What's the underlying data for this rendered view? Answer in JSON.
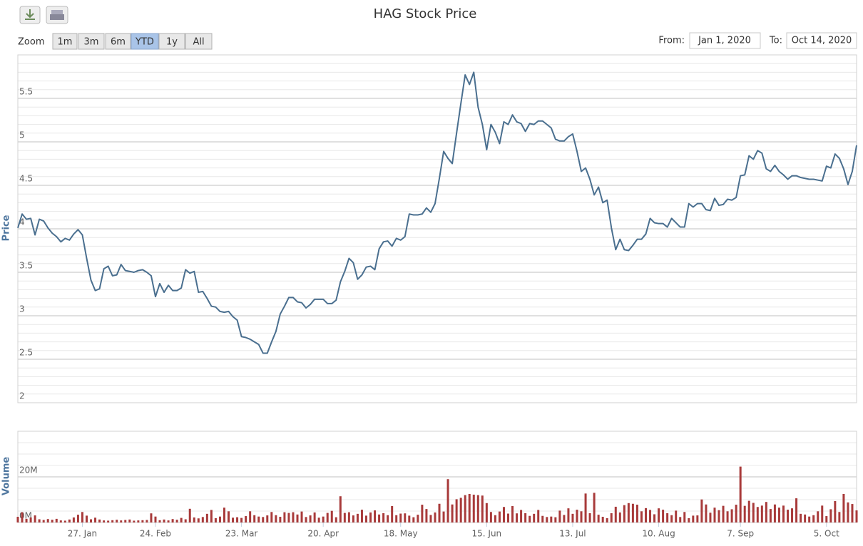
{
  "range_selector": {
    "label": "Zoom",
    "buttons": [
      "1m",
      "3m",
      "6m",
      "YTD",
      "1y",
      "All"
    ],
    "selected": 3,
    "from_label": "From:",
    "from": "Jan 1, 2020",
    "to_label": "To:",
    "to": "Oct 14, 2020"
  },
  "chart_data": {
    "type": "stock",
    "title": "HAG Stock Price",
    "categories": [
      null,
      null,
      null,
      null,
      null,
      null,
      null,
      null,
      null,
      null,
      null,
      null,
      null,
      null,
      null,
      "27. Jan",
      null,
      null,
      null,
      null,
      null,
      null,
      null,
      null,
      null,
      null,
      null,
      null,
      null,
      null,
      null,
      null,
      "24. Feb",
      null,
      null,
      null,
      null,
      null,
      null,
      null,
      null,
      null,
      null,
      null,
      null,
      null,
      null,
      null,
      null,
      null,
      null,
      null,
      "23. Mar",
      null,
      null,
      null,
      null,
      null,
      null,
      null,
      null,
      null,
      null,
      null,
      null,
      null,
      null,
      null,
      null,
      null,
      null,
      "20. Apr",
      null,
      null,
      null,
      null,
      null,
      null,
      null,
      null,
      null,
      null,
      null,
      null,
      null,
      null,
      null,
      null,
      null,
      "18. May",
      null,
      null,
      null,
      null,
      null,
      null,
      null,
      null,
      null,
      null,
      null,
      null,
      null,
      null,
      null,
      null,
      null,
      null,
      null,
      "15. Jun",
      null,
      null,
      null,
      null,
      null,
      null,
      null,
      null,
      null,
      null,
      null,
      null,
      null,
      null,
      null,
      null,
      null,
      null,
      null,
      "13. Jul",
      null,
      null,
      null,
      null,
      null,
      null,
      null,
      null,
      null,
      null,
      null,
      null,
      null,
      null,
      null,
      null,
      null,
      null,
      null,
      "10. Aug",
      null,
      null,
      null,
      null,
      null,
      null,
      null,
      null,
      null,
      null,
      null,
      null,
      null,
      null,
      null,
      null,
      null,
      null,
      "7. Sep",
      null,
      null,
      null,
      null,
      null,
      null,
      null,
      null,
      null,
      null,
      null,
      null,
      null,
      null,
      null,
      null,
      null,
      null,
      null,
      "5. Oct",
      null,
      null,
      null,
      null,
      null,
      null,
      null
    ],
    "panels": [
      {
        "type": "line",
        "ylabel": "Price",
        "color": "#4a6f8f",
        "ylim": [
          2,
          6
        ],
        "yticks": [
          2,
          2.5,
          3,
          3.5,
          4,
          4.5,
          5,
          5.5
        ],
        "minor_step": 0.1,
        "values": [
          4.01,
          4.17,
          4.11,
          4.12,
          3.93,
          4.11,
          4.09,
          4.01,
          3.95,
          3.91,
          3.85,
          3.89,
          3.87,
          3.94,
          3.99,
          3.93,
          3.66,
          3.41,
          3.29,
          3.31,
          3.54,
          3.57,
          3.46,
          3.47,
          3.59,
          3.52,
          3.51,
          3.5,
          3.52,
          3.53,
          3.5,
          3.46,
          3.22,
          3.37,
          3.27,
          3.35,
          3.29,
          3.29,
          3.32,
          3.53,
          3.49,
          3.51,
          3.27,
          3.28,
          3.2,
          3.11,
          3.1,
          3.05,
          3.04,
          3.05,
          2.99,
          2.95,
          2.76,
          2.75,
          2.73,
          2.7,
          2.67,
          2.57,
          2.57,
          2.7,
          2.82,
          3.02,
          3.11,
          3.21,
          3.21,
          3.16,
          3.15,
          3.09,
          3.13,
          3.19,
          3.19,
          3.19,
          3.14,
          3.14,
          3.18,
          3.39,
          3.51,
          3.66,
          3.61,
          3.42,
          3.47,
          3.56,
          3.57,
          3.53,
          3.77,
          3.85,
          3.86,
          3.8,
          3.89,
          3.87,
          3.91,
          4.17,
          4.16,
          4.16,
          4.17,
          4.24,
          4.19,
          4.29,
          4.58,
          4.89,
          4.81,
          4.75,
          5.1,
          5.44,
          5.77,
          5.66,
          5.8,
          5.4,
          5.2,
          4.91,
          5.2,
          5.11,
          4.98,
          5.23,
          5.2,
          5.31,
          5.23,
          5.21,
          5.12,
          5.21,
          5.2,
          5.24,
          5.24,
          5.2,
          5.16,
          5.03,
          5.01,
          5.01,
          5.06,
          5.09,
          4.89,
          4.66,
          4.7,
          4.57,
          4.39,
          4.48,
          4.3,
          4.33,
          4.01,
          3.76,
          3.88,
          3.76,
          3.75,
          3.81,
          3.88,
          3.88,
          3.94,
          4.12,
          4.07,
          4.06,
          4.06,
          4.02,
          4.12,
          4.07,
          4.02,
          4.02,
          4.29,
          4.25,
          4.29,
          4.29,
          4.22,
          4.21,
          4.35,
          4.27,
          4.28,
          4.34,
          4.33,
          4.36,
          4.61,
          4.62,
          4.84,
          4.8,
          4.9,
          4.87,
          4.69,
          4.66,
          4.73,
          4.66,
          4.62,
          4.57,
          4.61,
          4.61,
          4.59,
          4.58,
          4.57,
          4.57,
          4.56,
          4.55,
          4.72,
          4.7,
          4.86,
          4.81,
          4.69,
          4.51,
          4.66,
          4.96
        ]
      },
      {
        "type": "bar",
        "ylabel": "Volume",
        "color": "#a83a3a",
        "ylim": [
          0,
          40000000
        ],
        "yticks": [
          {
            "value": 0,
            "label": "0M"
          },
          {
            "value": 20000000,
            "label": "20M"
          }
        ],
        "minor_step": 5000000,
        "values": [
          2500000,
          4500000,
          1600000,
          2200000,
          3100000,
          1400000,
          1100000,
          1500000,
          1200000,
          1600000,
          900000,
          800000,
          1300000,
          2200000,
          3400000,
          4600000,
          3000000,
          1400000,
          2100000,
          1300000,
          900000,
          800000,
          1000000,
          1200000,
          900000,
          1100000,
          1300000,
          800000,
          900000,
          1000000,
          1100000,
          4000000,
          2600000,
          1000000,
          1300000,
          900000,
          1500000,
          1200000,
          2000000,
          1400000,
          6000000,
          2200000,
          1800000,
          2400000,
          3800000,
          5500000,
          1900000,
          2600000,
          6500000,
          4900000,
          2100000,
          2300000,
          2000000,
          2800000,
          4900000,
          3200000,
          2600000,
          2400000,
          3100000,
          4600000,
          3200000,
          2500000,
          4500000,
          4200000,
          4500000,
          3500000,
          4800000,
          2400000,
          3100000,
          4400000,
          2100000,
          2600000,
          4200000,
          5100000,
          2300000,
          11500000,
          4200000,
          4500000,
          3100000,
          3800000,
          5600000,
          3000000,
          4400000,
          5300000,
          3500000,
          4100000,
          3200000,
          7200000,
          3200000,
          3900000,
          4000000,
          3000000,
          2300000,
          3400000,
          7800000,
          5900000,
          3300000,
          4400000,
          8200000,
          4800000,
          19000000,
          7900000,
          10200000,
          10800000,
          12000000,
          12500000,
          12200000,
          12000000,
          11800000,
          8500000,
          4600000,
          3200000,
          4800000,
          6800000,
          3900000,
          7200000,
          4000000,
          5500000,
          4100000,
          2900000,
          3800000,
          5500000,
          2900000,
          2400000,
          2600000,
          2300000,
          5200000,
          3300000,
          6200000,
          3800000,
          5600000,
          4900000,
          12700000,
          4100000,
          13000000,
          3400000,
          2500000,
          1900000,
          4100000,
          6900000,
          4400000,
          7600000,
          8500000,
          8200000,
          7800000,
          4900000,
          6300000,
          5500000,
          3600000,
          6200000,
          5600000,
          4100000,
          3200000,
          5200000,
          2400000,
          4600000,
          1900000,
          3000000,
          3100000,
          10100000,
          7900000,
          4300000,
          6500000,
          5400000,
          7300000,
          4900000,
          5800000,
          7800000,
          24500000,
          7300000,
          9500000,
          8600000,
          6800000,
          7400000,
          9000000,
          5900000,
          7900000,
          6500000,
          7400000,
          5600000,
          6200000,
          10600000,
          3800000,
          3500000,
          2600000,
          3200000,
          4900000,
          7400000,
          2800000,
          5800000,
          9400000,
          4600000,
          12500000,
          8800000,
          8100000,
          5300000
        ]
      }
    ]
  }
}
